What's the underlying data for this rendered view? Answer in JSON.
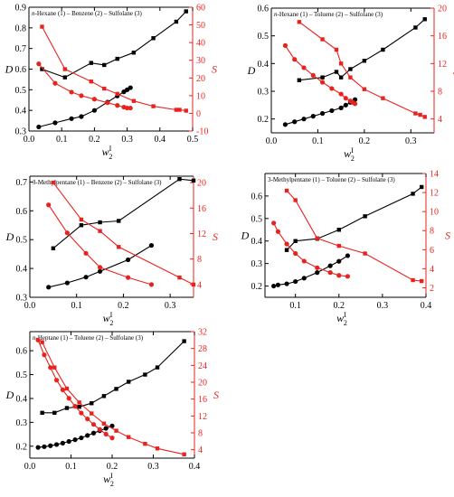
{
  "colors": {
    "D": "#000000",
    "S": "#e8231f"
  },
  "chart_data": [
    {
      "type": "line",
      "title": "n-Hexane (1) – Benzene (2) – Sulfolane (3)",
      "xlabel": "w",
      "xlabel_sup": "I",
      "xlabel_sub": "2",
      "ylabel": "D",
      "y2label": "S",
      "xlim": [
        0.0,
        0.5
      ],
      "ylim": [
        0.3,
        0.9
      ],
      "y2lim": [
        -10,
        60
      ],
      "xticks": [
        "0.0",
        "0.1",
        "0.2",
        "0.3",
        "0.4",
        "0.5"
      ],
      "yticks": [
        "0.3",
        "0.4",
        "0.5",
        "0.6",
        "0.7",
        "0.8",
        "0.9"
      ],
      "y2ticks": [
        "-10",
        "0",
        "10",
        "20",
        "30",
        "40",
        "50",
        "60"
      ],
      "series": [
        {
          "axis": "left",
          "marker": "square",
          "color": "#000000",
          "x": [
            0.04,
            0.11,
            0.19,
            0.23,
            0.27,
            0.32,
            0.38,
            0.45,
            0.48
          ],
          "y": [
            0.6,
            0.56,
            0.63,
            0.62,
            0.65,
            0.68,
            0.75,
            0.83,
            0.88
          ]
        },
        {
          "axis": "left",
          "marker": "circle",
          "color": "#000000",
          "x": [
            0.03,
            0.08,
            0.13,
            0.16,
            0.2,
            0.24,
            0.27,
            0.29,
            0.3,
            0.31
          ],
          "y": [
            0.32,
            0.34,
            0.36,
            0.37,
            0.4,
            0.44,
            0.47,
            0.49,
            0.5,
            0.51
          ]
        },
        {
          "axis": "right",
          "marker": "square",
          "color": "#e8231f",
          "x": [
            0.04,
            0.11,
            0.19,
            0.23,
            0.27,
            0.32,
            0.38,
            0.45,
            0.46,
            0.48
          ],
          "y": [
            49,
            25,
            18,
            14,
            11,
            7,
            4,
            2,
            2,
            1.5
          ]
        },
        {
          "axis": "right",
          "marker": "circle",
          "color": "#e8231f",
          "x": [
            0.03,
            0.08,
            0.13,
            0.16,
            0.2,
            0.24,
            0.27,
            0.29,
            0.3,
            0.31
          ],
          "y": [
            28,
            17,
            12,
            10,
            8,
            6,
            4.5,
            3.5,
            3,
            3
          ]
        }
      ]
    },
    {
      "type": "line",
      "title": "n-Hexane (1) – Toluene (2) – Sulfolane (3)",
      "xlabel": "w",
      "xlabel_sup": "I",
      "xlabel_sub": "2",
      "ylabel": "D",
      "y2label": "S",
      "xlim": [
        0.0,
        0.35
      ],
      "ylim": [
        0.15,
        0.6
      ],
      "y2lim": [
        2,
        20
      ],
      "xticks": [
        "0.0",
        "0.1",
        "0.2",
        "0.3"
      ],
      "yticks": [
        "0.2",
        "0.3",
        "0.4",
        "0.5",
        "0.6"
      ],
      "y2ticks": [
        "4",
        "8",
        "12",
        "16",
        "20"
      ],
      "series": [
        {
          "axis": "left",
          "marker": "square",
          "color": "#000000",
          "x": [
            0.06,
            0.11,
            0.14,
            0.15,
            0.17,
            0.2,
            0.24,
            0.31,
            0.33
          ],
          "y": [
            0.34,
            0.35,
            0.37,
            0.35,
            0.38,
            0.41,
            0.45,
            0.53,
            0.56
          ]
        },
        {
          "axis": "left",
          "marker": "circle",
          "color": "#000000",
          "x": [
            0.03,
            0.05,
            0.07,
            0.09,
            0.11,
            0.13,
            0.15,
            0.16,
            0.17,
            0.18
          ],
          "y": [
            0.18,
            0.19,
            0.2,
            0.21,
            0.22,
            0.23,
            0.24,
            0.25,
            0.26,
            0.27
          ]
        },
        {
          "axis": "right",
          "marker": "square",
          "color": "#e8231f",
          "x": [
            0.06,
            0.11,
            0.14,
            0.15,
            0.17,
            0.2,
            0.24,
            0.31,
            0.32,
            0.33
          ],
          "y": [
            18,
            15.5,
            14,
            12,
            10,
            8.3,
            7,
            4.8,
            4.6,
            4.3
          ]
        },
        {
          "axis": "right",
          "marker": "circle",
          "color": "#e8231f",
          "x": [
            0.03,
            0.05,
            0.07,
            0.09,
            0.11,
            0.13,
            0.15,
            0.16,
            0.17,
            0.175,
            0.18
          ],
          "y": [
            14.6,
            12.6,
            11.4,
            10.3,
            9.3,
            8.4,
            7.6,
            7.0,
            6.6,
            6.4,
            6.2
          ]
        }
      ]
    },
    {
      "type": "line",
      "title": "3-Methylpentane (1) – Benzene (2) – Sulfolane (3)",
      "xlabel": "w",
      "xlabel_sup": "I",
      "xlabel_sub": "2",
      "ylabel": "D",
      "y2label": "S",
      "xlim": [
        0.0,
        0.35
      ],
      "ylim": [
        0.3,
        0.72
      ],
      "y2lim": [
        2,
        21
      ],
      "xticks": [
        "0.0",
        "0.1",
        "0.2",
        "0.3"
      ],
      "yticks": [
        "0.3",
        "0.4",
        "0.5",
        "0.6",
        "0.7"
      ],
      "y2ticks": [
        "4",
        "8",
        "12",
        "16",
        "20"
      ],
      "series": [
        {
          "axis": "left",
          "marker": "square",
          "color": "#000000",
          "x": [
            0.05,
            0.11,
            0.15,
            0.19,
            0.32,
            0.35
          ],
          "y": [
            0.47,
            0.55,
            0.56,
            0.565,
            0.71,
            0.705
          ]
        },
        {
          "axis": "left",
          "marker": "circle",
          "color": "#000000",
          "x": [
            0.04,
            0.08,
            0.12,
            0.15,
            0.21,
            0.26
          ],
          "y": [
            0.335,
            0.35,
            0.37,
            0.39,
            0.43,
            0.48
          ]
        },
        {
          "axis": "right",
          "marker": "square",
          "color": "#e8231f",
          "x": [
            0.05,
            0.11,
            0.15,
            0.19,
            0.32,
            0.35
          ],
          "y": [
            20,
            14.2,
            12.4,
            9.9,
            5.1,
            4.0
          ]
        },
        {
          "axis": "right",
          "marker": "circle",
          "color": "#e8231f",
          "x": [
            0.04,
            0.08,
            0.12,
            0.15,
            0.21,
            0.26
          ],
          "y": [
            16.5,
            12.1,
            8.9,
            6.7,
            5.1,
            4.0
          ]
        }
      ]
    },
    {
      "type": "line",
      "title": "3-Methylpentane (1) – Toluene (2) – Sulfolane (3)",
      "xlabel": "w",
      "xlabel_sup": "I",
      "xlabel_sub": "2",
      "ylabel": "D",
      "y2label": "S",
      "xlim": [
        0.03,
        0.4
      ],
      "ylim": [
        0.15,
        0.7
      ],
      "y2lim": [
        1,
        14
      ],
      "xticks": [
        "0.1",
        "0.2",
        "0.3",
        "0.4"
      ],
      "yticks": [
        "0.2",
        "0.3",
        "0.4",
        "0.5",
        "0.6"
      ],
      "y2ticks": [
        "2",
        "4",
        "6",
        "8",
        "10",
        "12",
        "14"
      ],
      "series": [
        {
          "axis": "left",
          "marker": "square",
          "color": "#000000",
          "x": [
            0.08,
            0.1,
            0.15,
            0.2,
            0.26,
            0.37,
            0.39
          ],
          "y": [
            0.36,
            0.4,
            0.41,
            0.45,
            0.51,
            0.61,
            0.64
          ]
        },
        {
          "axis": "left",
          "marker": "circle",
          "color": "#000000",
          "x": [
            0.05,
            0.06,
            0.08,
            0.1,
            0.12,
            0.15,
            0.18,
            0.2,
            0.22
          ],
          "y": [
            0.2,
            0.205,
            0.21,
            0.22,
            0.235,
            0.26,
            0.29,
            0.31,
            0.335
          ]
        },
        {
          "axis": "right",
          "marker": "square",
          "color": "#e8231f",
          "x": [
            0.08,
            0.1,
            0.15,
            0.2,
            0.26,
            0.37,
            0.39
          ],
          "y": [
            12.2,
            11.2,
            7.2,
            6.4,
            5.6,
            2.8,
            2.7
          ]
        },
        {
          "axis": "right",
          "marker": "circle",
          "color": "#e8231f",
          "x": [
            0.05,
            0.06,
            0.08,
            0.1,
            0.12,
            0.15,
            0.18,
            0.2,
            0.22
          ],
          "y": [
            8.8,
            7.9,
            6.6,
            5.6,
            4.8,
            4.1,
            3.6,
            3.3,
            3.2
          ]
        }
      ]
    },
    {
      "type": "line",
      "title": "n-Heptane (1) – Toluene (2) – Sulfolane (3)",
      "xlabel": "w",
      "xlabel_sup": "I",
      "xlabel_sub": "2",
      "ylabel": "D",
      "y2label": "S",
      "xlim": [
        0.0,
        0.4
      ],
      "ylim": [
        0.15,
        0.68
      ],
      "y2lim": [
        2,
        32
      ],
      "xticks": [
        "0.0",
        "0.1",
        "0.2",
        "0.3",
        "0.4"
      ],
      "yticks": [
        "0.2",
        "0.3",
        "0.4",
        "0.5",
        "0.6"
      ],
      "y2ticks": [
        "4",
        "8",
        "12",
        "16",
        "20",
        "24",
        "28",
        "32"
      ],
      "series": [
        {
          "axis": "left",
          "marker": "square",
          "color": "#000000",
          "x": [
            0.03,
            0.06,
            0.09,
            0.12,
            0.15,
            0.18,
            0.21,
            0.24,
            0.28,
            0.31,
            0.375
          ],
          "y": [
            0.34,
            0.34,
            0.36,
            0.365,
            0.38,
            0.41,
            0.44,
            0.47,
            0.5,
            0.53,
            0.64
          ]
        },
        {
          "axis": "left",
          "marker": "circle",
          "color": "#000000",
          "x": [
            0.02,
            0.035,
            0.05,
            0.065,
            0.08,
            0.095,
            0.11,
            0.125,
            0.14,
            0.155,
            0.17,
            0.185,
            0.2
          ],
          "y": [
            0.195,
            0.198,
            0.202,
            0.207,
            0.213,
            0.22,
            0.227,
            0.235,
            0.245,
            0.255,
            0.265,
            0.275,
            0.285
          ]
        },
        {
          "axis": "right",
          "marker": "square",
          "color": "#e8231f",
          "x": [
            0.03,
            0.06,
            0.09,
            0.12,
            0.15,
            0.18,
            0.21,
            0.24,
            0.28,
            0.31,
            0.375
          ],
          "y": [
            29.5,
            23.5,
            18.5,
            15.2,
            12.6,
            10.2,
            8.5,
            7.0,
            5.4,
            4.3,
            2.9
          ]
        },
        {
          "axis": "right",
          "marker": "circle",
          "color": "#e8231f",
          "x": [
            0.02,
            0.035,
            0.05,
            0.065,
            0.08,
            0.095,
            0.11,
            0.125,
            0.14,
            0.155,
            0.17,
            0.185,
            0.2
          ],
          "y": [
            30,
            26.5,
            23.5,
            20.5,
            18.2,
            16.2,
            14.3,
            12.7,
            11.3,
            10.0,
            8.8,
            7.7,
            6.8
          ]
        }
      ]
    }
  ]
}
